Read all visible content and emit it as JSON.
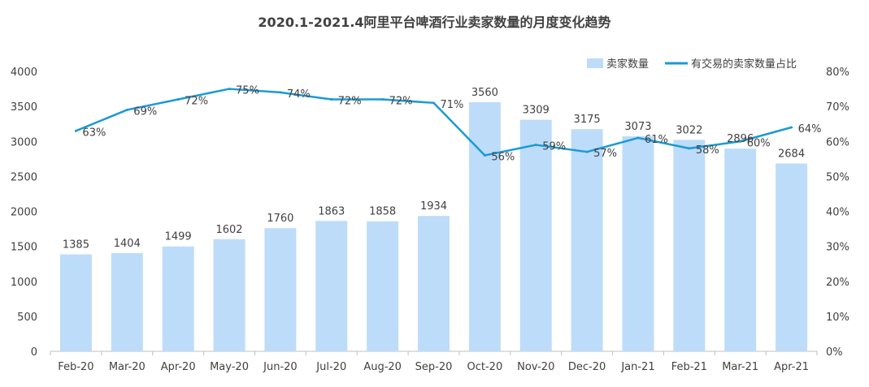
{
  "chart_data": {
    "type": "bar+line",
    "title": "2020.1-2021.4阿里平台啤酒行业卖家数量的月度变化趋势",
    "categories": [
      "Feb-20",
      "Mar-20",
      "Apr-20",
      "May-20",
      "Jun-20",
      "Jul-20",
      "Aug-20",
      "Sep-20",
      "Oct-20",
      "Nov-20",
      "Dec-20",
      "Jan-21",
      "Feb-21",
      "Mar-21",
      "Apr-21"
    ],
    "series": [
      {
        "name": "卖家数量",
        "type": "bar",
        "axis": "left",
        "color": "#bddcfa",
        "values": [
          1385,
          1404,
          1499,
          1602,
          1760,
          1863,
          1858,
          1934,
          3560,
          3309,
          3175,
          3073,
          3022,
          2896,
          2684
        ]
      },
      {
        "name": "有交易的卖家数量占比",
        "type": "line",
        "axis": "right",
        "color": "#1a9ad6",
        "values": [
          63,
          69,
          72,
          75,
          74,
          72,
          72,
          71,
          56,
          59,
          57,
          61,
          58,
          60,
          64
        ],
        "labels": [
          "63%",
          "69%",
          "72%",
          "75%",
          "74%",
          "72%",
          "72%",
          "71%",
          "56%",
          "59%",
          "57%",
          "61%",
          "58%",
          "60%",
          "64%"
        ]
      }
    ],
    "left_axis": {
      "range": [
        0,
        4000
      ],
      "ticks": [
        "0",
        "500",
        "1000",
        "1500",
        "2000",
        "2500",
        "3000",
        "3500",
        "4000"
      ]
    },
    "right_axis": {
      "range": [
        0,
        80
      ],
      "ticks": [
        "0%",
        "10%",
        "20%",
        "30%",
        "40%",
        "50%",
        "60%",
        "70%",
        "80%"
      ]
    },
    "grid": false,
    "legend": "top-right"
  }
}
